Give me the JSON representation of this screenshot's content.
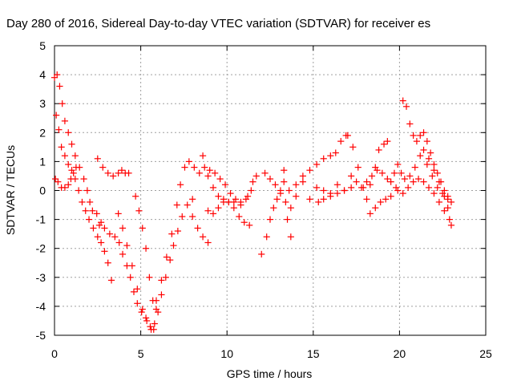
{
  "chart_data": {
    "type": "scatter",
    "title": "Day 280 of 2016, Sidereal Day-to-day VTEC variation (SDTVAR) for receiver es",
    "xlabel": "GPS time / hours",
    "ylabel": "SDTVAR / TECUs",
    "xlim": [
      0,
      25
    ],
    "ylim": [
      -5,
      5
    ],
    "x_ticks": [
      "0",
      "5",
      "10",
      "15",
      "20",
      "25"
    ],
    "y_ticks": [
      "-5",
      "-4",
      "-3",
      "-2",
      "-1",
      "0",
      "1",
      "2",
      "3",
      "4",
      "5"
    ],
    "grid": true,
    "legend": "none",
    "marker": "+",
    "series": [
      {
        "color": "#ff0000",
        "points": [
          [
            0.0,
            3.9
          ],
          [
            0.15,
            4.0
          ],
          [
            0.3,
            3.6
          ],
          [
            0.45,
            3.0
          ],
          [
            0.6,
            2.4
          ],
          [
            0.8,
            2.0
          ],
          [
            1.0,
            1.6
          ],
          [
            1.2,
            1.2
          ],
          [
            1.45,
            0.8
          ],
          [
            1.7,
            0.4
          ],
          [
            1.9,
            0.0
          ],
          [
            2.05,
            -0.4
          ],
          [
            2.2,
            -0.7
          ],
          [
            2.45,
            -0.8
          ],
          [
            2.7,
            -1.1
          ],
          [
            0.1,
            2.6
          ],
          [
            0.25,
            2.1
          ],
          [
            0.4,
            1.5
          ],
          [
            0.6,
            1.2
          ],
          [
            0.8,
            0.9
          ],
          [
            1.0,
            0.7
          ],
          [
            1.2,
            0.4
          ],
          [
            1.4,
            0.0
          ],
          [
            1.6,
            -0.4
          ],
          [
            1.8,
            -0.7
          ],
          [
            2.0,
            -1.0
          ],
          [
            2.25,
            -1.3
          ],
          [
            2.5,
            -1.6
          ],
          [
            2.7,
            -1.8
          ],
          [
            2.9,
            -2.1
          ],
          [
            3.1,
            -2.5
          ],
          [
            3.3,
            -3.1
          ],
          [
            0.05,
            0.4
          ],
          [
            0.2,
            0.3
          ],
          [
            0.4,
            0.1
          ],
          [
            0.6,
            0.1
          ],
          [
            0.8,
            0.2
          ],
          [
            0.95,
            0.4
          ],
          [
            1.1,
            0.6
          ],
          [
            1.25,
            0.8
          ],
          [
            2.6,
            -1.2
          ],
          [
            2.9,
            -1.3
          ],
          [
            3.2,
            -1.5
          ],
          [
            3.5,
            -1.6
          ],
          [
            3.75,
            -1.8
          ],
          [
            3.95,
            -2.2
          ],
          [
            4.2,
            -2.6
          ],
          [
            4.4,
            -3.0
          ],
          [
            4.6,
            -3.5
          ],
          [
            4.8,
            -3.9
          ],
          [
            5.05,
            -4.2
          ],
          [
            5.3,
            -4.4
          ],
          [
            5.55,
            -4.7
          ],
          [
            5.75,
            -4.8
          ],
          [
            2.5,
            1.1
          ],
          [
            2.8,
            0.8
          ],
          [
            3.1,
            0.6
          ],
          [
            3.4,
            0.5
          ],
          [
            3.7,
            0.6
          ],
          [
            3.9,
            0.7
          ],
          [
            4.1,
            0.6
          ],
          [
            4.3,
            0.6
          ],
          [
            3.7,
            -0.8
          ],
          [
            3.95,
            -1.3
          ],
          [
            4.2,
            -1.9
          ],
          [
            4.5,
            -2.6
          ],
          [
            4.8,
            -3.4
          ],
          [
            5.1,
            -4.1
          ],
          [
            5.35,
            -4.5
          ],
          [
            5.6,
            -4.8
          ],
          [
            4.7,
            -0.2
          ],
          [
            4.9,
            -0.7
          ],
          [
            5.1,
            -1.3
          ],
          [
            5.3,
            -2.0
          ],
          [
            5.5,
            -3.0
          ],
          [
            5.7,
            -3.8
          ],
          [
            5.9,
            -4.1
          ],
          [
            5.8,
            -4.6
          ],
          [
            6.0,
            -4.2
          ],
          [
            6.2,
            -3.6
          ],
          [
            6.45,
            -3.0
          ],
          [
            6.7,
            -2.4
          ],
          [
            6.9,
            -1.9
          ],
          [
            7.15,
            -1.4
          ],
          [
            7.4,
            -0.9
          ],
          [
            7.7,
            -0.5
          ],
          [
            8.0,
            -0.3
          ],
          [
            5.9,
            -3.8
          ],
          [
            6.2,
            -3.1
          ],
          [
            6.5,
            -2.3
          ],
          [
            6.8,
            -1.5
          ],
          [
            7.1,
            -0.5
          ],
          [
            7.3,
            0.2
          ],
          [
            7.55,
            0.8
          ],
          [
            7.8,
            1.0
          ],
          [
            8.1,
            0.8
          ],
          [
            8.4,
            0.6
          ],
          [
            8.0,
            -0.9
          ],
          [
            8.3,
            -1.3
          ],
          [
            8.6,
            -1.6
          ],
          [
            8.9,
            -1.8
          ],
          [
            8.6,
            1.2
          ],
          [
            8.9,
            0.5
          ],
          [
            9.2,
            0.1
          ],
          [
            9.5,
            -0.2
          ],
          [
            9.8,
            -0.3
          ],
          [
            10.1,
            -0.4
          ],
          [
            10.4,
            -0.4
          ],
          [
            10.8,
            -0.4
          ],
          [
            11.2,
            -0.2
          ],
          [
            11.5,
            0.3
          ],
          [
            8.7,
            0.8
          ],
          [
            9.0,
            0.7
          ],
          [
            9.3,
            0.6
          ],
          [
            9.6,
            0.4
          ],
          [
            9.9,
            0.2
          ],
          [
            10.2,
            -0.1
          ],
          [
            10.5,
            -0.3
          ],
          [
            10.8,
            -0.5
          ],
          [
            11.1,
            -0.3
          ],
          [
            11.4,
            0.0
          ],
          [
            11.7,
            0.5
          ],
          [
            8.9,
            -0.7
          ],
          [
            9.2,
            -0.8
          ],
          [
            9.5,
            -0.6
          ],
          [
            9.8,
            -0.4
          ],
          [
            10.1,
            -0.4
          ],
          [
            10.4,
            -0.6
          ],
          [
            10.7,
            -0.9
          ],
          [
            11.0,
            -1.1
          ],
          [
            11.3,
            -1.2
          ],
          [
            12.0,
            -2.2
          ],
          [
            12.3,
            -1.6
          ],
          [
            12.5,
            -1.0
          ],
          [
            12.7,
            -0.6
          ],
          [
            12.9,
            -0.3
          ],
          [
            13.1,
            0.0
          ],
          [
            13.3,
            0.3
          ],
          [
            12.2,
            0.6
          ],
          [
            12.5,
            0.4
          ],
          [
            12.8,
            0.2
          ],
          [
            13.1,
            -0.1
          ],
          [
            13.4,
            -0.4
          ],
          [
            13.7,
            -0.6
          ],
          [
            13.3,
            0.7
          ],
          [
            13.5,
            -1.0
          ],
          [
            13.7,
            -1.6
          ],
          [
            13.6,
            0.0
          ],
          [
            14.0,
            -0.2
          ],
          [
            14.4,
            0.3
          ],
          [
            14.8,
            -0.3
          ],
          [
            15.2,
            0.1
          ],
          [
            15.6,
            0.0
          ],
          [
            16.0,
            -0.1
          ],
          [
            16.4,
            0.2
          ],
          [
            16.8,
            0.0
          ],
          [
            17.2,
            0.1
          ],
          [
            14.0,
            0.2
          ],
          [
            14.4,
            0.5
          ],
          [
            14.8,
            0.7
          ],
          [
            15.2,
            0.9
          ],
          [
            15.6,
            1.1
          ],
          [
            16.0,
            1.2
          ],
          [
            16.3,
            1.3
          ],
          [
            16.6,
            1.7
          ],
          [
            16.9,
            1.9
          ],
          [
            15.3,
            -0.4
          ],
          [
            15.6,
            -0.3
          ],
          [
            16.0,
            -0.2
          ],
          [
            16.4,
            -0.1
          ],
          [
            16.8,
            0.0
          ],
          [
            17.0,
            1.9
          ],
          [
            17.3,
            1.5
          ],
          [
            17.6,
            0.8
          ],
          [
            17.9,
            0.1
          ],
          [
            18.1,
            -0.3
          ],
          [
            18.3,
            0.2
          ],
          [
            18.6,
            0.8
          ],
          [
            18.8,
            1.4
          ],
          [
            19.1,
            1.6
          ],
          [
            19.3,
            1.7
          ],
          [
            17.2,
            0.5
          ],
          [
            17.5,
            0.3
          ],
          [
            17.8,
            0.1
          ],
          [
            18.1,
            0.3
          ],
          [
            18.4,
            0.5
          ],
          [
            18.7,
            0.7
          ],
          [
            19.0,
            0.6
          ],
          [
            19.3,
            0.4
          ],
          [
            18.3,
            -0.8
          ],
          [
            18.6,
            -0.6
          ],
          [
            18.9,
            -0.4
          ],
          [
            19.2,
            -0.3
          ],
          [
            19.5,
            -0.2
          ],
          [
            19.8,
            0.1
          ],
          [
            19.5,
            0.3
          ],
          [
            19.7,
            0.6
          ],
          [
            19.9,
            0.9
          ],
          [
            20.1,
            0.6
          ],
          [
            20.3,
            0.4
          ],
          [
            20.6,
            0.5
          ],
          [
            20.9,
            0.8
          ],
          [
            21.2,
            1.2
          ],
          [
            21.4,
            1.4
          ],
          [
            21.7,
            1.1
          ],
          [
            22.0,
            0.7
          ],
          [
            22.3,
            0.3
          ],
          [
            22.6,
            -0.2
          ],
          [
            22.8,
            -0.6
          ],
          [
            20.2,
            3.1
          ],
          [
            20.4,
            2.9
          ],
          [
            20.6,
            2.3
          ],
          [
            20.8,
            1.9
          ],
          [
            21.0,
            1.7
          ],
          [
            21.2,
            1.9
          ],
          [
            21.4,
            2.0
          ],
          [
            21.6,
            1.7
          ],
          [
            21.8,
            1.3
          ],
          [
            22.0,
            0.9
          ],
          [
            22.2,
            0.6
          ],
          [
            22.4,
            0.3
          ],
          [
            22.6,
            0.0
          ],
          [
            22.8,
            -0.3
          ],
          [
            19.9,
            0.0
          ],
          [
            20.2,
            -0.1
          ],
          [
            20.5,
            0.1
          ],
          [
            20.8,
            0.3
          ],
          [
            21.1,
            0.4
          ],
          [
            21.4,
            0.3
          ],
          [
            21.7,
            0.1
          ],
          [
            22.0,
            -0.1
          ],
          [
            22.3,
            -0.4
          ],
          [
            22.6,
            -0.7
          ],
          [
            22.9,
            -1.0
          ],
          [
            23.0,
            -1.2
          ],
          [
            21.6,
            0.9
          ],
          [
            21.9,
            0.5
          ],
          [
            22.2,
            0.1
          ],
          [
            22.5,
            -0.1
          ],
          [
            22.8,
            -0.2
          ],
          [
            23.0,
            -0.4
          ]
        ]
      }
    ]
  }
}
